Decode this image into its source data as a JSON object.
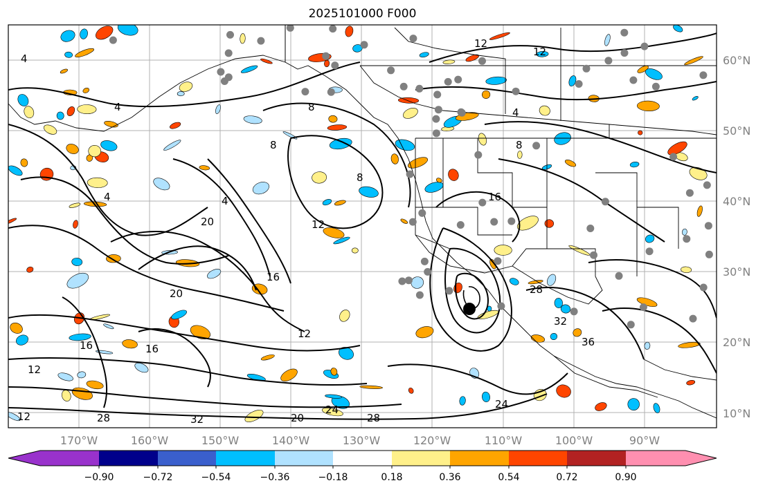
{
  "title": "2025101000 F000",
  "lat_labels": [
    "60°N",
    "50°N",
    "40°N",
    "30°N",
    "20°N",
    "10°N"
  ],
  "lon_labels": [
    "170°W",
    "160°W",
    "150°W",
    "140°W",
    "130°W",
    "120°W",
    "110°W",
    "100°W",
    "90°W"
  ],
  "colorbar": {
    "ticks": [
      "−0.90",
      "−0.72",
      "−0.54",
      "−0.36",
      "−0.18",
      "0.18",
      "0.36",
      "0.54",
      "0.72",
      "0.90"
    ],
    "colors": [
      "#9932cc",
      "#00008b",
      "#3a5fcd",
      "#00bfff",
      "#b0e2ff",
      "#ffffff",
      "#fff08a",
      "#ffa500",
      "#ff4500",
      "#b22222",
      "#ff8fb0"
    ],
    "extend": "both"
  },
  "contour_labels": [
    "4",
    "4",
    "4",
    "4",
    "8",
    "8",
    "8",
    "12",
    "12",
    "12",
    "12",
    "16",
    "16",
    "16",
    "20",
    "20",
    "20",
    "24",
    "24",
    "28",
    "28",
    "28",
    "32",
    "32",
    "36",
    "12",
    "4",
    "8",
    "12",
    "16"
  ],
  "colors": {
    "grid": "#b0b0b0",
    "axis_label": "#808080",
    "contour": "#000000",
    "station_dot": "#808080"
  }
}
